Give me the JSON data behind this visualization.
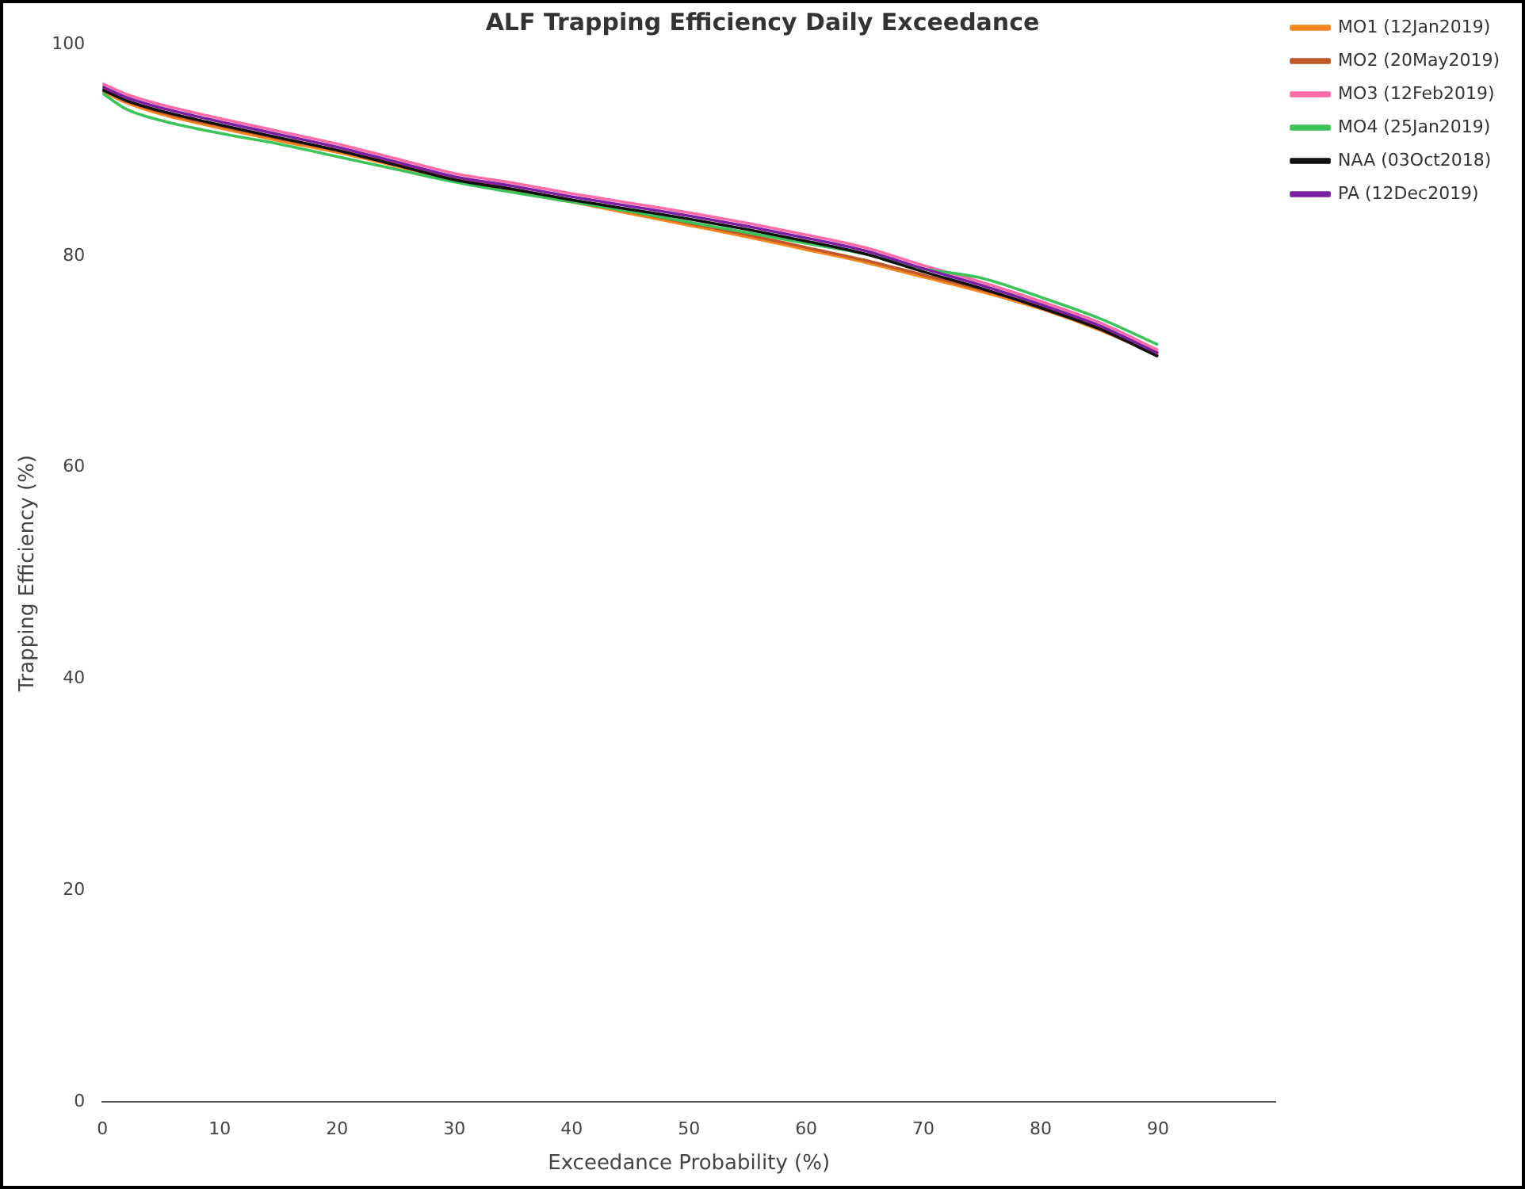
{
  "chart_data": {
    "type": "line",
    "title": "ALF Trapping Efficiency Daily Exceedance",
    "xlabel": "Exceedance Probability (%)",
    "ylabel": "Trapping Efficiency (%)",
    "x": [
      0,
      2,
      5,
      10,
      15,
      20,
      25,
      30,
      35,
      40,
      45,
      50,
      55,
      60,
      65,
      70,
      75,
      80,
      85,
      90
    ],
    "xlim": [
      0,
      100
    ],
    "xticks": [
      0,
      10,
      20,
      30,
      40,
      50,
      60,
      70,
      80,
      90
    ],
    "ylim": [
      0,
      100
    ],
    "yticks": [
      0,
      20,
      40,
      60,
      80,
      100
    ],
    "grid": false,
    "legend": "top right",
    "marker": "none",
    "line_style": "solid",
    "series": [
      {
        "name": "MO1 (12Jan2019)",
        "color": "#f5861f",
        "values": [
          95.6,
          94.5,
          93.4,
          92.1,
          90.9,
          89.8,
          88.5,
          87.2,
          86.1,
          85.1,
          84,
          82.9,
          81.8,
          80.6,
          79.4,
          78,
          76.6,
          75,
          73,
          70.6
        ]
      },
      {
        "name": "MO2 (20May2019)",
        "color": "#c0582a",
        "values": [
          95.8,
          94.7,
          93.6,
          92.3,
          91.1,
          90,
          88.7,
          87.4,
          86.3,
          85.3,
          84.2,
          83.1,
          82,
          80.8,
          79.6,
          78.2,
          76.8,
          75.2,
          73.2,
          70.8
        ]
      },
      {
        "name": "MO3 (12Feb2019)",
        "color": "#ff6aa8",
        "values": [
          96.3,
          95.3,
          94.3,
          93,
          91.8,
          90.6,
          89.2,
          87.8,
          86.9,
          85.9,
          85,
          84.1,
          83.1,
          82,
          80.8,
          79.1,
          77.5,
          75.7,
          73.7,
          71.1
        ]
      },
      {
        "name": "MO4 (25Jan2019)",
        "color": "#3cc45a",
        "values": [
          95.4,
          93.9,
          92.8,
          91.6,
          90.6,
          89.4,
          88.2,
          87,
          86,
          85.1,
          84.2,
          83.2,
          82.2,
          81.2,
          80.2,
          78.8,
          77.9,
          76.1,
          74.1,
          71.6
        ]
      },
      {
        "name": "NAA (03Oct2018)",
        "color": "#111111",
        "values": [
          95.7,
          94.7,
          93.7,
          92.4,
          91.2,
          90,
          88.6,
          87.2,
          86.3,
          85.3,
          84.4,
          83.5,
          82.5,
          81.4,
          80.2,
          78.5,
          76.9,
          75.1,
          73.1,
          70.5
        ]
      },
      {
        "name": "PA (12Dec2019)",
        "color": "#7b1fa2",
        "values": [
          96,
          95,
          94,
          92.7,
          91.5,
          90.3,
          88.9,
          87.5,
          86.6,
          85.6,
          84.7,
          83.8,
          82.8,
          81.7,
          80.5,
          78.8,
          77.2,
          75.4,
          73.4,
          70.8
        ]
      }
    ]
  }
}
